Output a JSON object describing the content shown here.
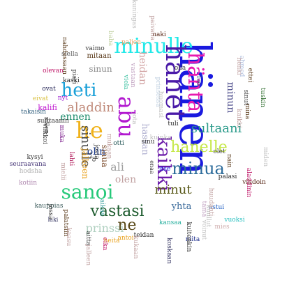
{
  "words": [
    {
      "text": "hänen",
      "color": "#1a1adf"
    },
    {
      "text": "minulle",
      "color": "#22e8e8"
    },
    {
      "text": "hanet",
      "color": "#4a1aa8"
    },
    {
      "text": "hänta",
      "color": "#e81ab0"
    },
    {
      "text": "heti",
      "color": "#1aa0d8"
    },
    {
      "text": "sanoi",
      "color": "#27c97a"
    },
    {
      "text": "minua",
      "color": "#2a6a9a"
    },
    {
      "text": "he",
      "color": "#f0b21a"
    },
    {
      "text": "hanelle",
      "color": "#c6e84a"
    },
    {
      "text": "vastasi",
      "color": "#1b5a2c"
    },
    {
      "text": "abu",
      "color": "#b21ad0"
    },
    {
      "text": "kaikki",
      "color": "#6a1aa8"
    },
    {
      "text": "aladdin",
      "color": "#c08a7a"
    },
    {
      "text": "sultaani",
      "color": "#2a9a8a"
    },
    {
      "text": "minut",
      "color": "#5a5a1a"
    },
    {
      "text": "minun",
      "color": "#4a4a8a"
    },
    {
      "text": "sinulle",
      "color": "#4a4a4a"
    },
    {
      "text": "ne",
      "color": "#5a4a1a"
    },
    {
      "text": "prinssi",
      "color": "#b0d0c0"
    },
    {
      "text": "ali",
      "color": "#a0a0a0"
    },
    {
      "text": "olen",
      "color": "#c0a0a0"
    },
    {
      "text": "olin",
      "color": "#1a3a8a"
    },
    {
      "text": "ennen",
      "color": "#1a8a6a"
    },
    {
      "text": "heidan",
      "color": "#d0a0a0"
    },
    {
      "text": "sinun",
      "color": "#8a8a8a"
    },
    {
      "text": "kalifi",
      "color": "#c01ad0"
    },
    {
      "text": "hassan",
      "color": "#b0b0d0"
    },
    {
      "text": "yhta",
      "color": "#3a6a9a"
    },
    {
      "text": "sinua",
      "color": "#7a4a2a"
    },
    {
      "text": "jalkeen",
      "color": "#e8a01a"
    },
    {
      "text": "mitaan",
      "color": "#5a3a1a"
    },
    {
      "text": "vaimo",
      "color": "#3a3a3a"
    },
    {
      "text": "paljon",
      "color": "#e8a060"
    },
    {
      "text": "naki",
      "color": "#5a2a1a"
    },
    {
      "text": "kaski",
      "color": "#2a2a2a"
    },
    {
      "text": "olevan",
      "color": "#c01a6a"
    },
    {
      "text": "ovat",
      "color": "#2a2a5a"
    },
    {
      "text": "eivat",
      "color": "#d8c040"
    },
    {
      "text": "nyt",
      "color": "#9a1ad0"
    },
    {
      "text": "takaisin",
      "color": "#2a5a7a"
    },
    {
      "text": "sulttaanin",
      "color": "#3a3a3a"
    },
    {
      "text": "kysyi",
      "color": "#3a3a3a"
    },
    {
      "text": "seuraavana",
      "color": "#4a3a7a"
    },
    {
      "text": "hodsha",
      "color": "#b0b0b0"
    },
    {
      "text": "kotiin",
      "color": "#b08ab0"
    },
    {
      "text": "kauppias",
      "color": "#3a5a5a"
    },
    {
      "text": "laki",
      "color": "#2a2a5a"
    },
    {
      "text": "lahti",
      "color": "#b01a5a"
    },
    {
      "text": "vihdoin",
      "color": "#5a2a1a"
    },
    {
      "text": "palasi",
      "color": "#2a2a2a"
    },
    {
      "text": "olet",
      "color": "#3a3a3a"
    },
    {
      "text": "nain",
      "color": "#5a3a1a"
    },
    {
      "text": "astui",
      "color": "#1a5ac0"
    },
    {
      "text": "vuoksi",
      "color": "#2ac0c0"
    },
    {
      "text": "mies",
      "color": "#d0b0b0"
    },
    {
      "text": "niita",
      "color": "#1a2a8a"
    },
    {
      "text": "teidan",
      "color": "#2a2a2a"
    },
    {
      "text": "kansaa",
      "color": "#2ab0a0"
    },
    {
      "text": "antoi",
      "color": "#e8a01a"
    },
    {
      "text": "heita",
      "color": "#e8a01a"
    },
    {
      "text": "eika",
      "color": "#c01a6a"
    },
    {
      "text": "aitta",
      "color": "#3a3a3a"
    },
    {
      "text": "tuli",
      "color": "#2a2a2a"
    },
    {
      "text": "itse",
      "color": "#1a1adf"
    },
    {
      "text": "enaa",
      "color": "#3a3a3a"
    },
    {
      "text": "otti",
      "color": "#2a5a5a"
    },
    {
      "text": "olla",
      "color": "#3a3a3a"
    },
    {
      "text": "jota",
      "color": "#c0c0c0"
    },
    {
      "text": "kuinka",
      "color": "#c0c0c0"
    },
    {
      "text": "huomasi",
      "color": "#c0c0c0"
    },
    {
      "text": "aikaa",
      "color": "#3aa0a0"
    },
    {
      "text": "kuullut",
      "color": "#c0c0c0"
    },
    {
      "text": "tama",
      "color": "#c0a0c0"
    },
    {
      "text": "voinut",
      "color": "#c0c0c0"
    },
    {
      "text": "aladdinin",
      "color": "#c01a6a"
    },
    {
      "text": "miden",
      "color": "#c0c0c0"
    },
    {
      "text": "tuskin",
      "color": "#2a6a2a"
    },
    {
      "text": "ahmed",
      "color": "#b0c0e0"
    },
    {
      "text": "henki",
      "color": "#c0a0a0"
    },
    {
      "text": "ettei",
      "color": "#5a3a1a"
    },
    {
      "text": "sinut",
      "color": "#3a3a3a"
    },
    {
      "text": "mina",
      "color": "#5a3a1a"
    },
    {
      "text": "kaikki",
      "color": "#c0a0a0"
    },
    {
      "text": "siella",
      "color": "#5a5a5a"
    },
    {
      "text": "piari",
      "color": "#3a3a3a"
    },
    {
      "text": "nahdessaan",
      "color": "#5a3a1a"
    },
    {
      "text": "kuningas",
      "color": "#c0c0c0"
    },
    {
      "text": "baba",
      "color": "#c0d0a0"
    },
    {
      "text": "paivana",
      "color": "#c0a0a0"
    },
    {
      "text": "vastaan",
      "color": "#c0a0c0"
    },
    {
      "text": "viela",
      "color": "#3ac0a0"
    },
    {
      "text": "prinsessa",
      "color": "#c0d0e0"
    },
    {
      "text": "luo",
      "color": "#2a5a7a"
    },
    {
      "text": "josta",
      "color": "#3a3a3a"
    },
    {
      "text": "kukaan",
      "color": "#c0a0a0"
    },
    {
      "text": "jalleen",
      "color": "#c0a0a0"
    },
    {
      "text": "koskaan",
      "color": "#2a2a5a"
    },
    {
      "text": "kuitenkin",
      "color": "#2a2a2a"
    },
    {
      "text": "huudahti",
      "color": "#c0a0a0"
    },
    {
      "text": "mielii",
      "color": "#c0a0a0"
    },
    {
      "text": "sillen",
      "color": "#3a3a3a"
    },
    {
      "text": "jo",
      "color": "#3a3a3a"
    },
    {
      "text": "jossa",
      "color": "#3a3a3a"
    },
    {
      "text": "muka",
      "color": "#7a1a8a"
    },
    {
      "text": "viikkoi",
      "color": "#3a3a3a"
    },
    {
      "text": "palatsiin",
      "color": "#5a3a1a"
    },
    {
      "text": "kaasu",
      "color": "#c0a0a0"
    },
    {
      "text": "mukaan",
      "color": "#c0a0a0"
    },
    {
      "text": "sinu",
      "color": "#3a3a3a"
    }
  ]
}
